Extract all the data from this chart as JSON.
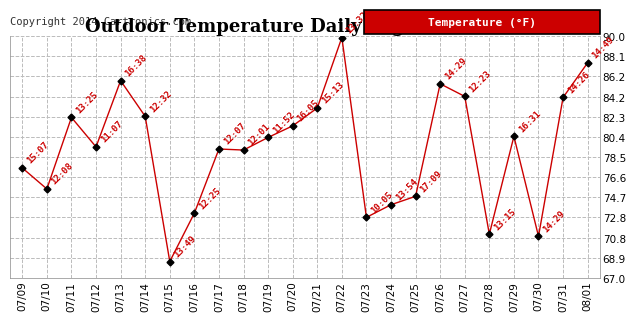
{
  "title": "Outdoor Temperature Daily High 20140802",
  "copyright": "Copyright 2014 Cartronics.com",
  "legend_label": "Temperature (°F)",
  "x_labels": [
    "07/09",
    "07/10",
    "07/11",
    "07/12",
    "07/13",
    "07/14",
    "07/15",
    "07/16",
    "07/17",
    "07/18",
    "07/19",
    "07/20",
    "07/21",
    "07/22",
    "07/23",
    "07/24",
    "07/25",
    "07/26",
    "07/27",
    "07/28",
    "07/29",
    "07/30",
    "07/31",
    "08/01"
  ],
  "y_values": [
    77.5,
    75.5,
    82.3,
    79.5,
    85.8,
    82.4,
    68.6,
    73.2,
    79.3,
    79.2,
    80.4,
    81.5,
    83.2,
    89.9,
    72.8,
    74.0,
    74.8,
    85.5,
    84.3,
    71.2,
    80.5,
    71.0,
    84.2,
    87.5
  ],
  "time_labels": [
    "15:07",
    "12:08",
    "13:25",
    "11:07",
    "16:38",
    "12:32",
    "13:49",
    "12:25",
    "12:07",
    "12:01",
    "11:52",
    "16:05",
    "15:13",
    "13:32",
    "10:05",
    "13:54",
    "17:09",
    "14:29",
    "12:23",
    "13:15",
    "16:31",
    "14:29",
    "14:26",
    "14:49"
  ],
  "line_color": "#cc0000",
  "marker_color": "#000000",
  "label_color": "#cc0000",
  "background_color": "#ffffff",
  "grid_color": "#bbbbbb",
  "ylim": [
    67.0,
    90.0
  ],
  "ytick_vals": [
    67.0,
    68.9,
    70.8,
    72.8,
    74.7,
    76.6,
    78.5,
    80.4,
    82.3,
    84.2,
    86.2,
    88.1,
    90.0
  ],
  "ytick_labels": [
    "67.0",
    "68.9",
    "70.8",
    "72.8",
    "74.7",
    "76.6",
    "78.5",
    "80.4",
    "82.3",
    "84.2",
    "86.2",
    "88.1",
    "90.0"
  ],
  "title_fontsize": 13,
  "label_fontsize": 6.5,
  "copyright_fontsize": 7.5,
  "tick_fontsize": 7.5,
  "legend_bg": "#cc0000",
  "legend_text_color": "#ffffff",
  "legend_fontsize": 8
}
